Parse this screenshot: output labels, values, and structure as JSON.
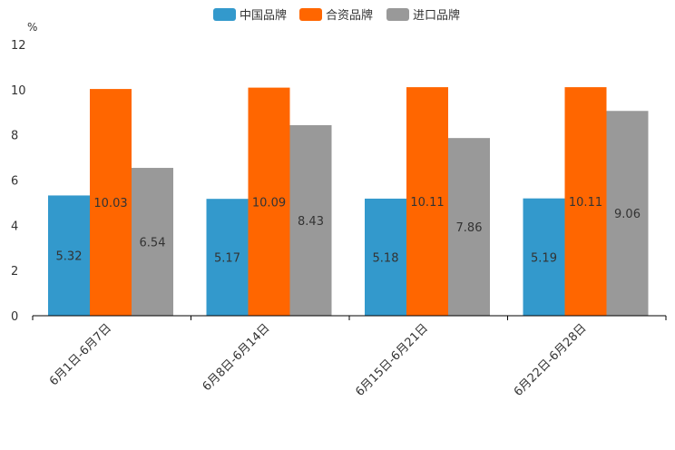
{
  "chart_data": {
    "type": "bar",
    "title": "",
    "unit_label": "%",
    "xlabel": "",
    "ylabel": "",
    "categories": [
      "6月1日-6月7日",
      "6月8日-6月14日",
      "6月15日-6月21日",
      "6月22日-6月28日"
    ],
    "series": [
      {
        "name": "中国品牌",
        "color": "#3399cc",
        "values": [
          5.32,
          5.17,
          5.18,
          5.19
        ],
        "labels": [
          "5.32",
          "5.17",
          "5.18",
          "5.19"
        ]
      },
      {
        "name": "合资品牌",
        "color": "#ff6600",
        "values": [
          10.03,
          10.09,
          10.11,
          10.11
        ],
        "labels": [
          "10.03",
          "10.09",
          "10.11",
          "10.11"
        ]
      },
      {
        "name": "进口品牌",
        "color": "#999999",
        "values": [
          6.54,
          8.43,
          7.86,
          9.06
        ],
        "labels": [
          "6.54",
          "8.43",
          "7.86",
          "9.06"
        ]
      }
    ],
    "ylim": [
      0,
      12
    ],
    "yticks": [
      0,
      2,
      4,
      6,
      8,
      10,
      12
    ],
    "grid": false,
    "legend": "top-center"
  }
}
